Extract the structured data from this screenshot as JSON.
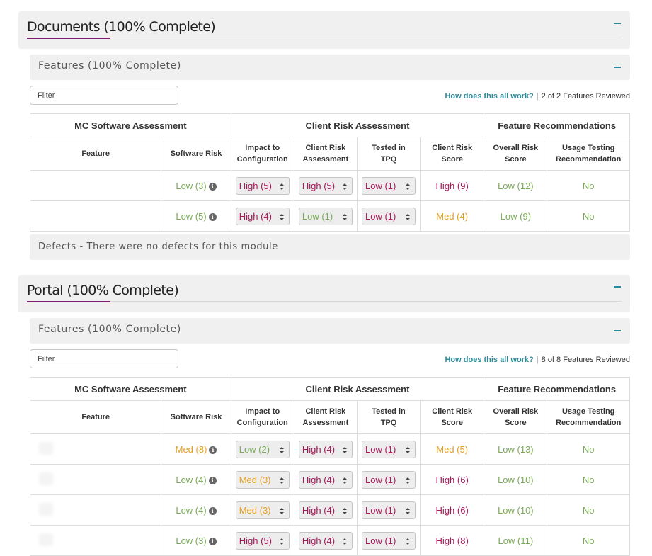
{
  "shared": {
    "filter_placeholder": "Filter",
    "help_link": "How does this all work?",
    "separator": "|",
    "group_headers": [
      "MC Software Assessment",
      "Client Risk Assessment",
      "Feature Recommendations"
    ],
    "column_headers": {
      "feature": "Feature",
      "software_risk": "Software Risk",
      "impact_line1": "Impact to",
      "impact_line2": "Configuration",
      "client_line1": "Client Risk",
      "client_line2": "Assessment",
      "tested_line1": "Tested in",
      "tested_line2": "TPQ",
      "score_line1": "Client Risk",
      "score_line2": "Score",
      "overall_line1": "Overall Risk",
      "overall_line2": "Score",
      "usage_line1": "Usage Testing",
      "usage_line2": "Recommendation"
    },
    "colors": {
      "low": "#7aaa57",
      "med": "#e5a021",
      "high": "#a8185a",
      "accent": "#2b8a9a",
      "underline": "#7b1f6e"
    }
  },
  "documents": {
    "title": "Documents (100% Complete)",
    "features_title": "Features (100% Complete)",
    "reviewed": "2 of 2 Features Reviewed",
    "defects": "Defects - There were no defects for this module",
    "rows": [
      {
        "software_risk": "Low (3)",
        "impact": "High (5)",
        "client": "High (5)",
        "tested": "Low (1)",
        "score": "High (9)",
        "overall": "Low (12)",
        "usage": "No"
      },
      {
        "software_risk": "Low (5)",
        "impact": "High (4)",
        "client": "Low (1)",
        "tested": "Low (1)",
        "score": "Med (4)",
        "overall": "Low (9)",
        "usage": "No"
      }
    ]
  },
  "portal": {
    "title": "Portal (100% Complete)",
    "features_title": "Features (100% Complete)",
    "reviewed": "8 of 8 Features Reviewed",
    "rows": [
      {
        "software_risk": "Med (8)",
        "impact": "Low (2)",
        "client": "High (4)",
        "tested": "Low (1)",
        "score": "Med (5)",
        "overall": "Low (13)",
        "usage": "No"
      },
      {
        "software_risk": "Low (4)",
        "impact": "Med (3)",
        "client": "High (4)",
        "tested": "Low (1)",
        "score": "High (6)",
        "overall": "Low (10)",
        "usage": "No"
      },
      {
        "software_risk": "Low (4)",
        "impact": "Med (3)",
        "client": "High (4)",
        "tested": "Low (1)",
        "score": "High (6)",
        "overall": "Low (10)",
        "usage": "No"
      },
      {
        "software_risk": "Low (3)",
        "impact": "High (5)",
        "client": "High (4)",
        "tested": "Low (1)",
        "score": "High (8)",
        "overall": "Low (11)",
        "usage": "No"
      }
    ]
  }
}
